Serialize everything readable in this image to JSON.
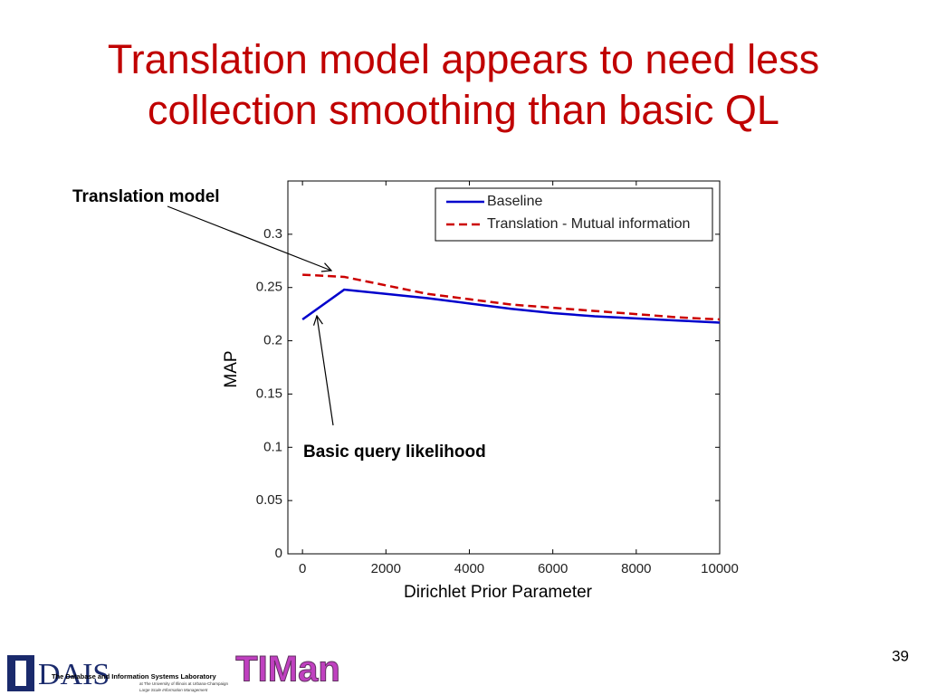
{
  "chart_data": {
    "type": "line",
    "title": "Translation model appears to need less collection smoothing than basic QL",
    "x_label": "Dirichlet Prior Parameter",
    "y_label": "MAP",
    "annotations": [
      "Translation model",
      "Basic query likelihood"
    ],
    "x": [
      0,
      1000,
      2000,
      3000,
      4000,
      5000,
      6000,
      7000,
      8000,
      9000,
      10000
    ],
    "series": [
      {
        "name": "Baseline",
        "color": "#0000cc",
        "linestyle": "solid",
        "values": [
          0.22,
          0.248,
          0.244,
          0.24,
          0.235,
          0.23,
          0.226,
          0.223,
          0.221,
          0.219,
          0.217
        ]
      },
      {
        "name": "Translation - Mutual information",
        "color": "#cc0000",
        "linestyle": "dashed",
        "values": [
          0.262,
          0.26,
          0.252,
          0.244,
          0.239,
          0.234,
          0.231,
          0.228,
          0.225,
          0.222,
          0.22
        ]
      }
    ],
    "xlim": [
      -350,
      10000
    ],
    "xticks": [
      0,
      2000,
      4000,
      6000,
      8000,
      10000
    ],
    "ylim": [
      0,
      0.35
    ],
    "yticks": [
      0,
      0.05,
      0.1,
      0.15,
      0.2,
      0.25,
      0.3
    ],
    "grid": false,
    "legend": "upper right"
  },
  "footer": {
    "logo_left": "DAIS",
    "lab_name": "The Database and Information Systems Laboratory",
    "lab_subtitle": "at The University of Illinois at Urbana-Champaign",
    "lab_tagline": "Large Scale Information Management",
    "logo_right": "TIMan",
    "page_number": "39"
  }
}
